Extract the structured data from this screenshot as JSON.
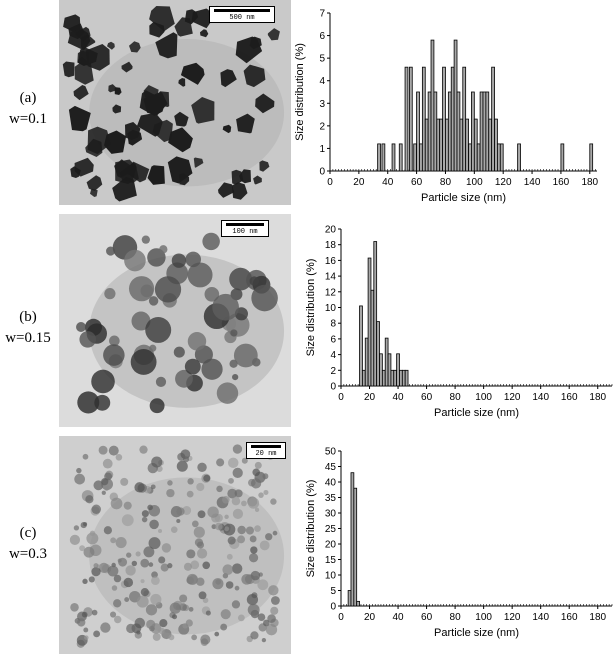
{
  "panels": [
    {
      "label_top": "(a)",
      "label_bottom": "w=0.1",
      "scalebar": "500 nm",
      "micrograph": {
        "background": "#c9c9c9",
        "particle_color": "#1c1c1c",
        "style": "dark-faceted"
      },
      "chart_data": {
        "type": "bar",
        "xlabel": "Particle size (nm)",
        "ylabel": "Size distribution (%)",
        "xlim": [
          0,
          185
        ],
        "ylim": [
          0,
          7
        ],
        "xticks": [
          0,
          20,
          40,
          60,
          80,
          100,
          120,
          140,
          160,
          180
        ],
        "yticks": [
          0,
          1,
          2,
          3,
          4,
          5,
          6,
          7
        ],
        "bin_width": 2,
        "bars": [
          [
            34,
            1.2
          ],
          [
            37,
            1.2
          ],
          [
            44,
            1.2
          ],
          [
            49,
            1.2
          ],
          [
            53,
            4.6
          ],
          [
            56,
            4.6
          ],
          [
            59,
            1.2
          ],
          [
            61,
            3.5
          ],
          [
            63,
            1.2
          ],
          [
            65,
            4.6
          ],
          [
            67,
            2.3
          ],
          [
            69,
            3.5
          ],
          [
            71,
            5.8
          ],
          [
            73,
            3.5
          ],
          [
            75,
            2.3
          ],
          [
            77,
            2.3
          ],
          [
            79,
            4.6
          ],
          [
            81,
            2.3
          ],
          [
            83,
            3.5
          ],
          [
            85,
            4.6
          ],
          [
            87,
            5.8
          ],
          [
            89,
            3.5
          ],
          [
            91,
            2.3
          ],
          [
            93,
            4.6
          ],
          [
            95,
            2.3
          ],
          [
            97,
            1.2
          ],
          [
            99,
            3.5
          ],
          [
            101,
            2.3
          ],
          [
            103,
            1.2
          ],
          [
            105,
            3.5
          ],
          [
            107,
            3.5
          ],
          [
            109,
            3.5
          ],
          [
            111,
            2.3
          ],
          [
            113,
            4.6
          ],
          [
            115,
            2.3
          ],
          [
            117,
            1.2
          ],
          [
            119,
            1.2
          ],
          [
            131,
            1.2
          ],
          [
            161,
            1.2
          ],
          [
            181,
            1.2
          ]
        ]
      }
    },
    {
      "label_top": "(b)",
      "label_bottom": "w=0.15",
      "scalebar": "100 nm",
      "micrograph": {
        "background": "#dcdcdc",
        "particle_color": "#3a3a3a",
        "style": "gray-cluster"
      },
      "chart_data": {
        "type": "bar",
        "xlabel": "Particle size (nm)",
        "ylabel": "Size distribution (%)",
        "xlim": [
          0,
          190
        ],
        "ylim": [
          0,
          20
        ],
        "xticks": [
          0,
          20,
          40,
          60,
          80,
          100,
          120,
          140,
          160,
          180
        ],
        "yticks": [
          0,
          2,
          4,
          6,
          8,
          10,
          12,
          14,
          16,
          18,
          20
        ],
        "bin_width": 2,
        "bars": [
          [
            14,
            10.2
          ],
          [
            16,
            2
          ],
          [
            18,
            6.1
          ],
          [
            20,
            16.3
          ],
          [
            22,
            12.2
          ],
          [
            24,
            18.4
          ],
          [
            26,
            8.2
          ],
          [
            28,
            4.1
          ],
          [
            30,
            2
          ],
          [
            32,
            6.1
          ],
          [
            34,
            4.1
          ],
          [
            36,
            2
          ],
          [
            38,
            2
          ],
          [
            40,
            4.1
          ],
          [
            42,
            2
          ],
          [
            44,
            2
          ],
          [
            46,
            2
          ]
        ]
      }
    },
    {
      "label_top": "(c)",
      "label_bottom": "w=0.3",
      "scalebar": "20 nm",
      "micrograph": {
        "background": "#cfcfcf",
        "particle_color": "#6a6a6a",
        "style": "mottled"
      },
      "chart_data": {
        "type": "bar",
        "xlabel": "Particle size (nm)",
        "ylabel": "Size distribution (%)",
        "xlim": [
          0,
          190
        ],
        "ylim": [
          0,
          50
        ],
        "xticks": [
          0,
          20,
          40,
          60,
          80,
          100,
          120,
          140,
          160,
          180
        ],
        "yticks": [
          0,
          5,
          10,
          15,
          20,
          25,
          30,
          35,
          40,
          45,
          50
        ],
        "bin_width": 2,
        "bars": [
          [
            6,
            5
          ],
          [
            8,
            43
          ],
          [
            10,
            38
          ],
          [
            12,
            1.5
          ]
        ]
      }
    }
  ]
}
